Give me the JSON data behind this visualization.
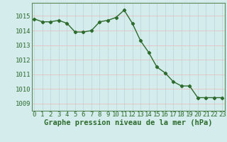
{
  "hours": [
    0,
    1,
    2,
    3,
    4,
    5,
    6,
    7,
    8,
    9,
    10,
    11,
    12,
    13,
    14,
    15,
    16,
    17,
    18,
    19,
    20,
    21,
    22,
    23
  ],
  "pressure": [
    1014.8,
    1014.6,
    1014.6,
    1014.7,
    1014.5,
    1013.9,
    1013.9,
    1014.0,
    1014.6,
    1014.7,
    1014.9,
    1015.4,
    1014.5,
    1013.3,
    1012.5,
    1011.5,
    1011.1,
    1010.5,
    1010.2,
    1010.2,
    1009.4,
    1009.4,
    1009.4,
    1009.4
  ],
  "ylim": [
    1008.5,
    1015.9
  ],
  "yticks": [
    1009,
    1010,
    1011,
    1012,
    1013,
    1014,
    1015
  ],
  "xlim": [
    -0.3,
    23.3
  ],
  "xticks": [
    0,
    1,
    2,
    3,
    4,
    5,
    6,
    7,
    8,
    9,
    10,
    11,
    12,
    13,
    14,
    15,
    16,
    17,
    18,
    19,
    20,
    21,
    22,
    23
  ],
  "line_color": "#2d6b2d",
  "marker": "D",
  "marker_size": 2.2,
  "bg_color": "#d4ecec",
  "grid_color_h": "#e8b8b8",
  "grid_color_v": "#b8d4d4",
  "xlabel": "Graphe pression niveau de la mer (hPa)",
  "xlabel_fontsize": 7.5,
  "tick_fontsize": 6.5,
  "label_color": "#2d6b2d",
  "linewidth": 1.0
}
